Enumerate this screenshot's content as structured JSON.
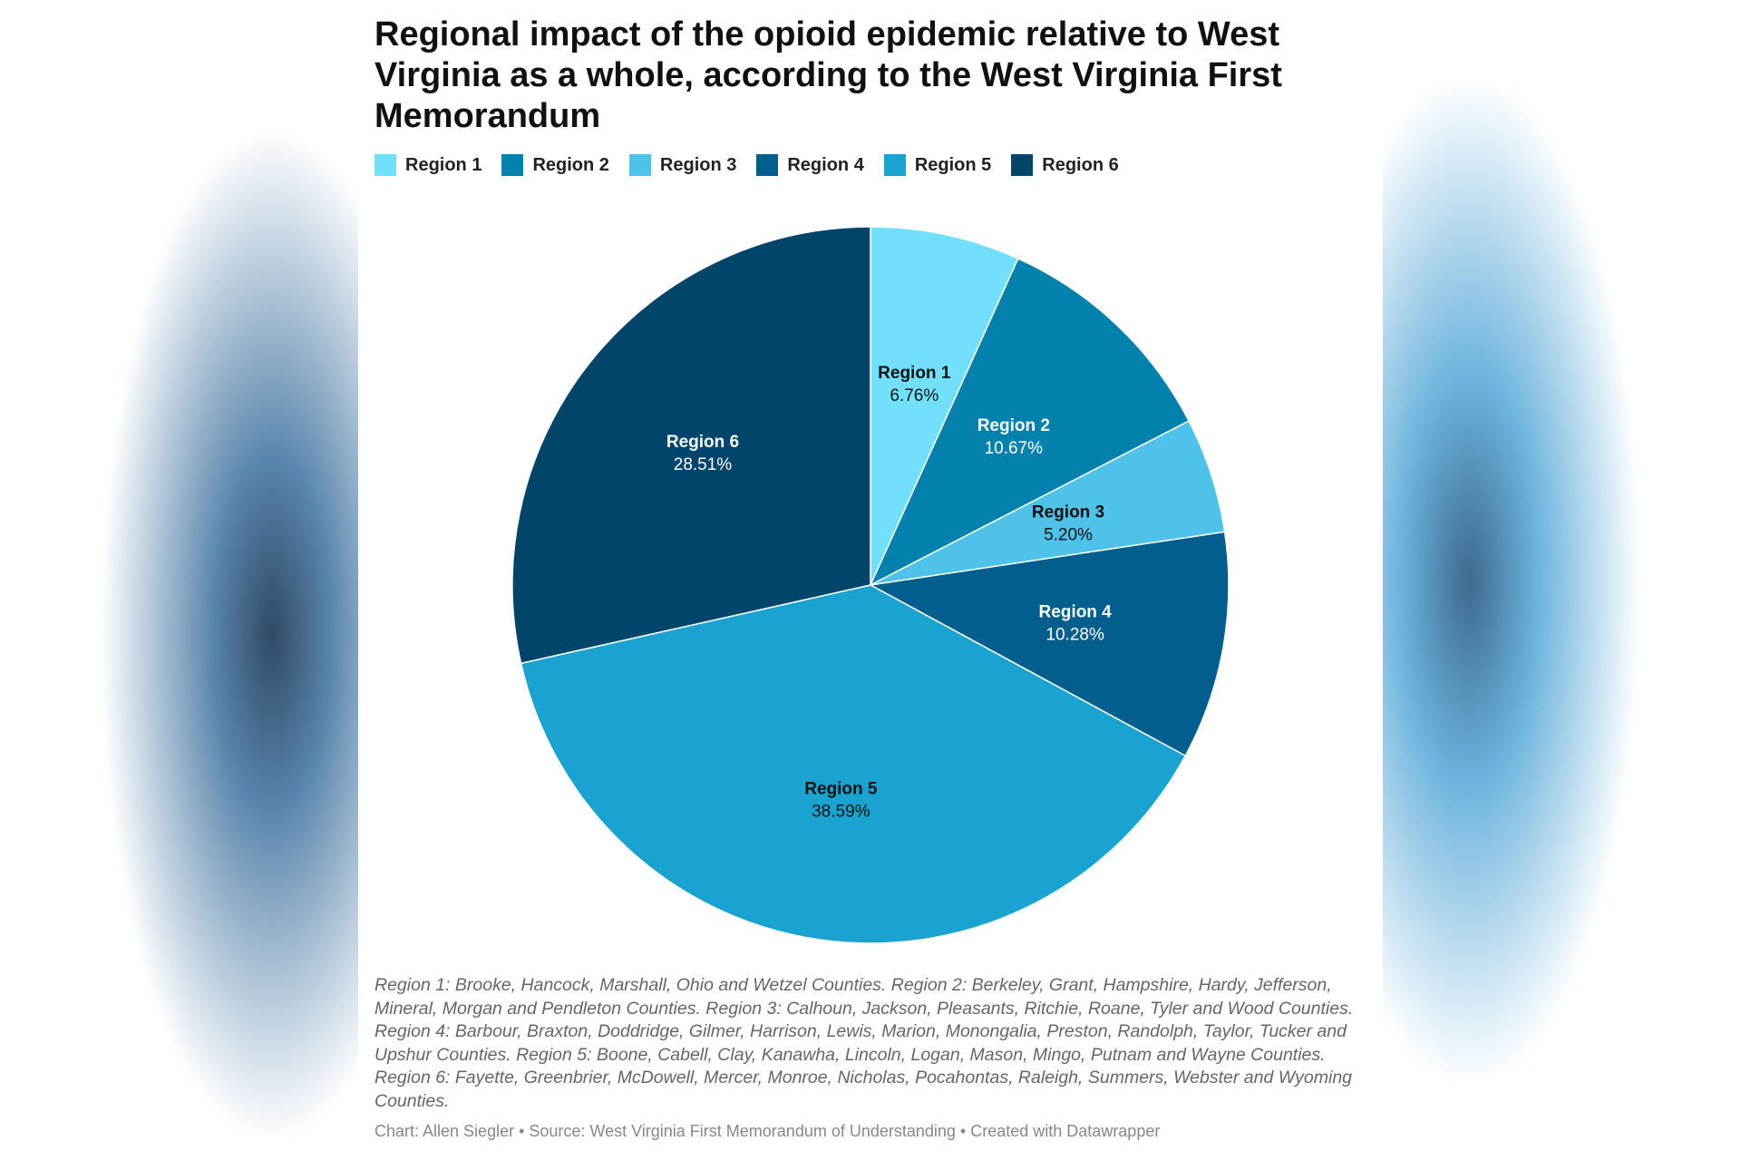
{
  "title": "Regional impact of the opioid epidemic relative to West Virginia as a whole, according to the West Virginia First Memorandum",
  "notes": "Region 1: Brooke, Hancock, Marshall, Ohio and Wetzel Counties. Region 2: Berkeley, Grant, Hampshire, Hardy, Jefferson, Mineral, Morgan and Pendleton Counties. Region 3: Calhoun, Jackson, Pleasants, Ritchie, Roane, Tyler and Wood Counties. Region 4: Barbour, Braxton, Doddridge, Gilmer, Harrison, Lewis, Marion, Monongalia, Preston, Randolph, Taylor, Tucker and Upshur Counties. Region 5: Boone, Cabell, Clay, Kanawha, Lincoln, Logan, Mason, Mingo, Putnam and Wayne Counties. Region 6: Fayette, Greenbrier, McDowell, Mercer, Monroe, Nicholas, Pocahontas, Raleigh, Summers, Webster and Wyoming Counties.",
  "credit": "Chart: Allen Siegler • Source: West Virginia First Memorandum of Understanding • Created with Datawrapper",
  "chart_data": {
    "type": "pie",
    "title": "Regional impact of the opioid epidemic relative to West Virginia as a whole, according to the West Virginia First Memorandum",
    "legend_placement": "top-left",
    "slices": [
      {
        "label": "Region 1",
        "value": 6.76,
        "value_label": "6.76%",
        "color": "#72e0fc",
        "text_color": "#111111"
      },
      {
        "label": "Region 2",
        "value": 10.67,
        "value_label": "10.67%",
        "color": "#0381ad",
        "text_color": "#ffffff"
      },
      {
        "label": "Region 3",
        "value": 5.2,
        "value_label": "5.20%",
        "color": "#4fc2ea",
        "text_color": "#111111"
      },
      {
        "label": "Region 4",
        "value": 10.28,
        "value_label": "10.28%",
        "color": "#025e8c",
        "text_color": "#ffffff"
      },
      {
        "label": "Region 5",
        "value": 38.59,
        "value_label": "38.59%",
        "color": "#1aa3d1",
        "text_color": "#111111"
      },
      {
        "label": "Region 6",
        "value": 28.51,
        "value_label": "28.51%",
        "color": "#02456b",
        "text_color": "#ffffff"
      }
    ]
  }
}
